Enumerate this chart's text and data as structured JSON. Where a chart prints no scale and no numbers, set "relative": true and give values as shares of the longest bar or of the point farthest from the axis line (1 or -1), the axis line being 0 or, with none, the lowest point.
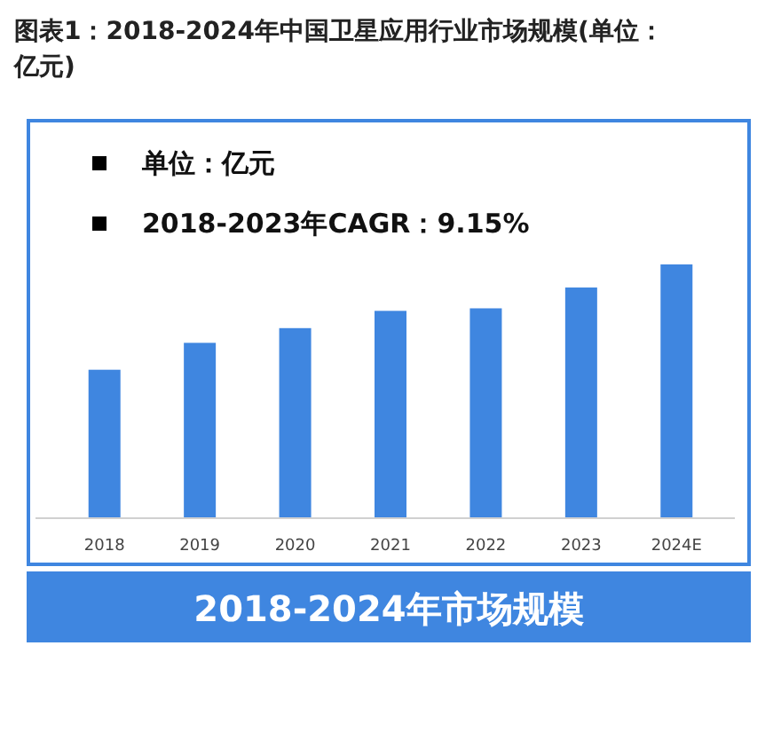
{
  "chart_data": {
    "type": "bar",
    "title": "图表1：2018-2024年中国卫星应用行业市场规模(单位：亿元)",
    "subtitle": "2018-2024年市场规模",
    "annotations": [
      "单位：亿元",
      "2018-2023年CAGR：9.15%"
    ],
    "categories": [
      "2018",
      "2019",
      "2020",
      "2021",
      "2022",
      "2023",
      "2024E"
    ],
    "values": [
      0.585,
      0.691,
      0.749,
      0.817,
      0.827,
      0.909,
      1
    ],
    "color": "#3f86e0",
    "relative": true
  }
}
